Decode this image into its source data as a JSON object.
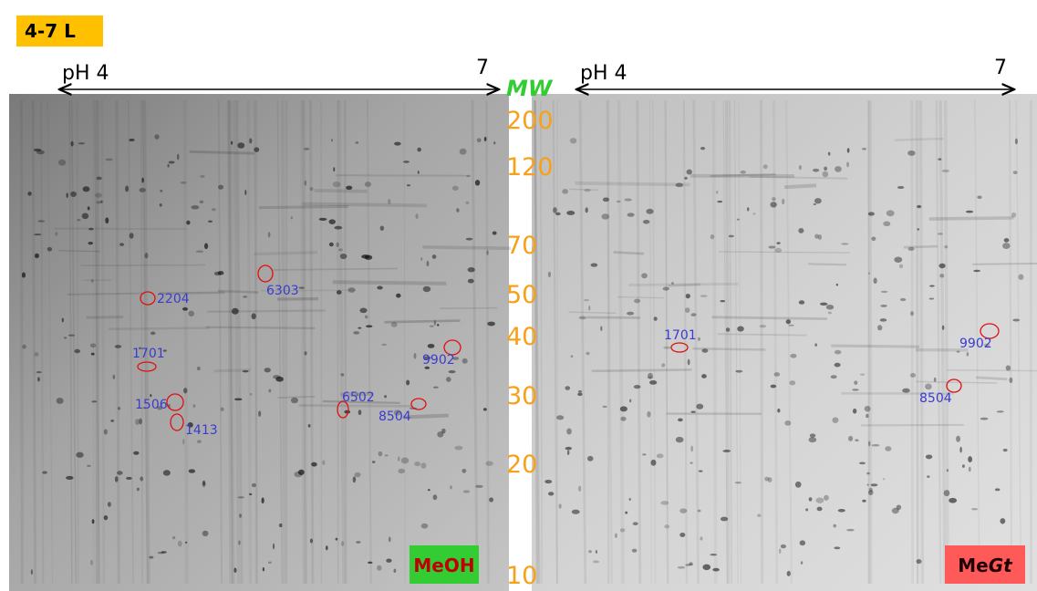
{
  "header": {
    "label": "4-7 L"
  },
  "mw": {
    "title": "MW",
    "markers": [
      200,
      120,
      70,
      50,
      40,
      30,
      20,
      10
    ]
  },
  "gels": [
    {
      "ph_start": "pH 4",
      "ph_end": "7",
      "sample": {
        "prefix": "MeOH",
        "italic": null
      },
      "spots": [
        "2204",
        "6303",
        "1701",
        "9902",
        "1506",
        "1413",
        "6502",
        "8504"
      ]
    },
    {
      "ph_start": "pH 4",
      "ph_end": "7",
      "sample": {
        "prefix": "Me",
        "italic": "Gt"
      },
      "spots": [
        "1701",
        "9902",
        "8504"
      ]
    }
  ]
}
